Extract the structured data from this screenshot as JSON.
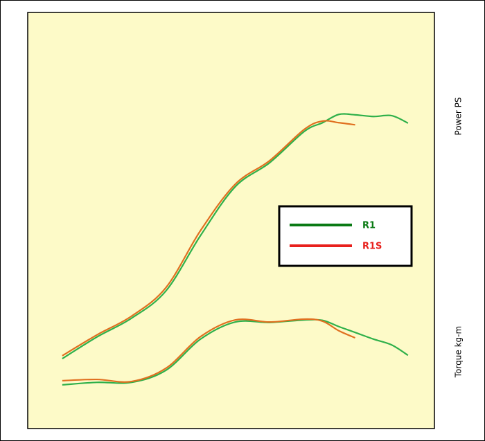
{
  "chart_data": {
    "type": "line",
    "x": [
      8.5,
      17,
      25.5,
      34,
      42.5,
      51,
      59.5,
      68,
      72.5,
      76.5,
      80.5,
      85,
      89.5,
      93.5
    ],
    "xlim": [
      0,
      100
    ],
    "ylim": [
      0,
      100
    ],
    "power_label": "Power  PS",
    "torque_label": "Torque  kg-m",
    "background": "#fdfac8",
    "series": [
      {
        "name": "R1",
        "color": "#2fb04a",
        "legend_color": "#0a7a14",
        "values": [
          16.8,
          22,
          26.5,
          33.1,
          46.4,
          58.1,
          63.9,
          71.4,
          73.5,
          75.5,
          75.4,
          75,
          75.2,
          73.4
        ],
        "torque": [
          10.5,
          11.1,
          11.1,
          14,
          21.5,
          25.6,
          25.5,
          26.1,
          26,
          24.5,
          23.1,
          21.5,
          20.1,
          17.6
        ]
      },
      {
        "name": "R1S",
        "color": "#e07020",
        "legend_color": "#e8201c",
        "values": [
          17.5,
          22.5,
          27,
          33.9,
          47.6,
          58.7,
          64.4,
          71.9,
          73.9,
          73.5,
          73,
          null,
          null,
          null
        ],
        "torque": [
          11.5,
          11.8,
          11.3,
          14.5,
          22.1,
          26.1,
          25.6,
          26.3,
          25.8,
          23.5,
          21.8,
          null,
          null,
          null
        ]
      }
    ]
  }
}
